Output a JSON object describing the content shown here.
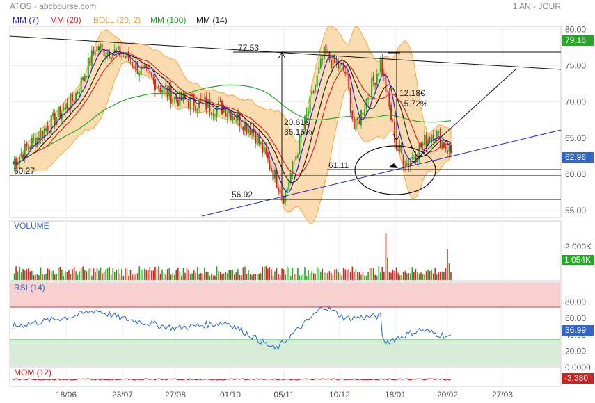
{
  "header": {
    "title": "ATOS - abcbourse.com",
    "period": "1 AN - JOUR"
  },
  "legend": [
    {
      "label": "MM (7)",
      "color": "#2222cc"
    },
    {
      "label": "MM (20)",
      "color": "#dd2222"
    },
    {
      "label": "BOLL (20, 2)",
      "color": "#f0a030"
    },
    {
      "label": "MM (100)",
      "color": "#22aa22"
    },
    {
      "label": "MM (14)",
      "color": "#222222"
    }
  ],
  "colors": {
    "up": "#22aa22",
    "down": "#dd2222",
    "boll_fill": "#fbd9a8",
    "boll_line": "#f0a030",
    "mm7": "#2222cc",
    "mm20": "#dd2222",
    "mm100": "#22aa22",
    "mm14": "#222222",
    "trend_blue": "#2222cc",
    "rsi_line": "#2266cc",
    "rsi_over": "#f8d0d0",
    "rsi_under": "#d6ecd6",
    "mom_line": "#cc2222",
    "label_blue": "#3366cc",
    "label_green": "#22aa22",
    "label_red": "#cc2222"
  },
  "chart_data": {
    "type": "line",
    "title": "ATOS",
    "x_ticks": [
      "18/06",
      "23/07",
      "27/08",
      "01/10",
      "05/11",
      "10/12",
      "18/01",
      "20/02",
      "27/03"
    ],
    "price_panel": {
      "y_ticks": [
        "80.00",
        "75.00",
        "70.00",
        "65.00",
        "60.00",
        "55.00"
      ],
      "ylim": [
        55,
        81
      ],
      "last_price": "79.16",
      "current_price": "62.96",
      "key_points": [
        {
          "date": "start",
          "close": 61.5
        },
        {
          "date": "18/06",
          "close": 70.5
        },
        {
          "date": "late 06",
          "close": 77.5
        },
        {
          "date": "23/07",
          "close": 76.5
        },
        {
          "date": "27/08",
          "close": 70.5
        },
        {
          "date": "01/10",
          "close": 69.0
        },
        {
          "date": "mid 10",
          "close": 66.0
        },
        {
          "date": "05/11",
          "close": 56.9
        },
        {
          "date": "mid 11",
          "close": 66.0
        },
        {
          "date": "late 11",
          "close": 76.5
        },
        {
          "date": "10/12",
          "close": 74.0
        },
        {
          "date": "early 01",
          "close": 75.5
        },
        {
          "date": "18/01",
          "close": 64.0
        },
        {
          "date": "late 01",
          "close": 61.5
        },
        {
          "date": "early 02",
          "close": 66.0
        },
        {
          "date": "20/02",
          "close": 62.96
        }
      ],
      "annotations": [
        {
          "text": "77.53"
        },
        {
          "text": "60.27"
        },
        {
          "text": "56.92"
        },
        {
          "text": "61.11"
        },
        {
          "text": "20.61€"
        },
        {
          "text": "36.15%"
        },
        {
          "text": "12.18€"
        },
        {
          "text": "15.72%"
        }
      ]
    },
    "volume_panel": {
      "label": "VOLUME",
      "y_ticks": [
        "2 000K"
      ],
      "last_value": "1 054K"
    },
    "rsi_panel": {
      "label": "RSI (14)",
      "y_ticks": [
        "80.00",
        "60.00",
        "40.00",
        "20.00",
        "0.0000"
      ],
      "ylim": [
        0,
        100
      ],
      "overbought": 70,
      "oversold": 30,
      "last_value": "36.99",
      "key_points": [
        {
          "date": "start",
          "value": 50
        },
        {
          "date": "18/06",
          "value": 63
        },
        {
          "date": "late 06",
          "value": 70
        },
        {
          "date": "23/07",
          "value": 60
        },
        {
          "date": "27/08",
          "value": 48
        },
        {
          "date": "01/10",
          "value": 55
        },
        {
          "date": "05/11",
          "value": 22
        },
        {
          "date": "late 11",
          "value": 75
        },
        {
          "date": "10/12",
          "value": 60
        },
        {
          "date": "early 01",
          "value": 63
        },
        {
          "date": "18/01",
          "value": 30
        },
        {
          "date": "early 02",
          "value": 46
        },
        {
          "date": "20/02",
          "value": 36.99
        }
      ]
    },
    "mom_panel": {
      "label": "MOM (12)",
      "last_value": "-3.380"
    }
  }
}
